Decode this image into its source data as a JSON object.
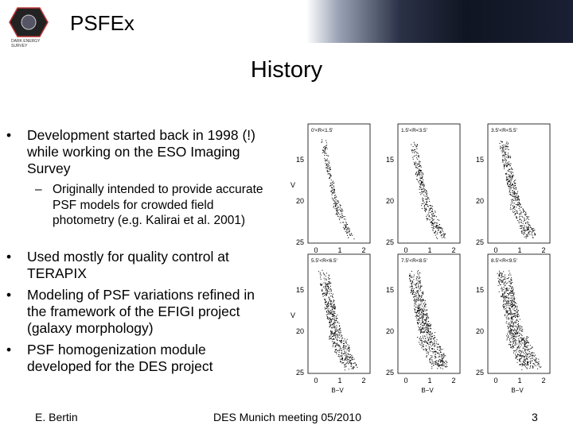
{
  "header": {
    "title": "PSFEx",
    "logo_text": "DARK ENERGY SURVEY"
  },
  "heading": "History",
  "bullets": [
    {
      "text": "Development started back in 1998 (!) while working on the ESO Imaging Survey",
      "sub": [
        "Originally intended to provide accurate PSF models for crowded field photometry (e.g. Kalirai et al. 2001)"
      ]
    },
    {
      "text": "Used mostly for quality control at TERAPIX"
    },
    {
      "text": "Modeling of PSF variations refined in the framework of the EFIGI project (galaxy morphology)"
    },
    {
      "text": "PSF homogenization module developed for the DES project"
    }
  ],
  "figure": {
    "panels": [
      "0'<R<1.5'",
      "1.5'<R<3.5'",
      "3.5'<R<5.5'",
      "5.5'<R<6.5'",
      "7.5'<R<8.5'",
      "8.5'<R<9.5'"
    ],
    "y_ticks": [
      "15",
      "20",
      "25"
    ],
    "x_ticks": [
      "0",
      "1",
      "2"
    ],
    "y_label": "V",
    "x_label": "B−V"
  },
  "footer": {
    "author": "E. Bertin",
    "event": "DES Munich meeting 05/2010",
    "page": "3"
  }
}
